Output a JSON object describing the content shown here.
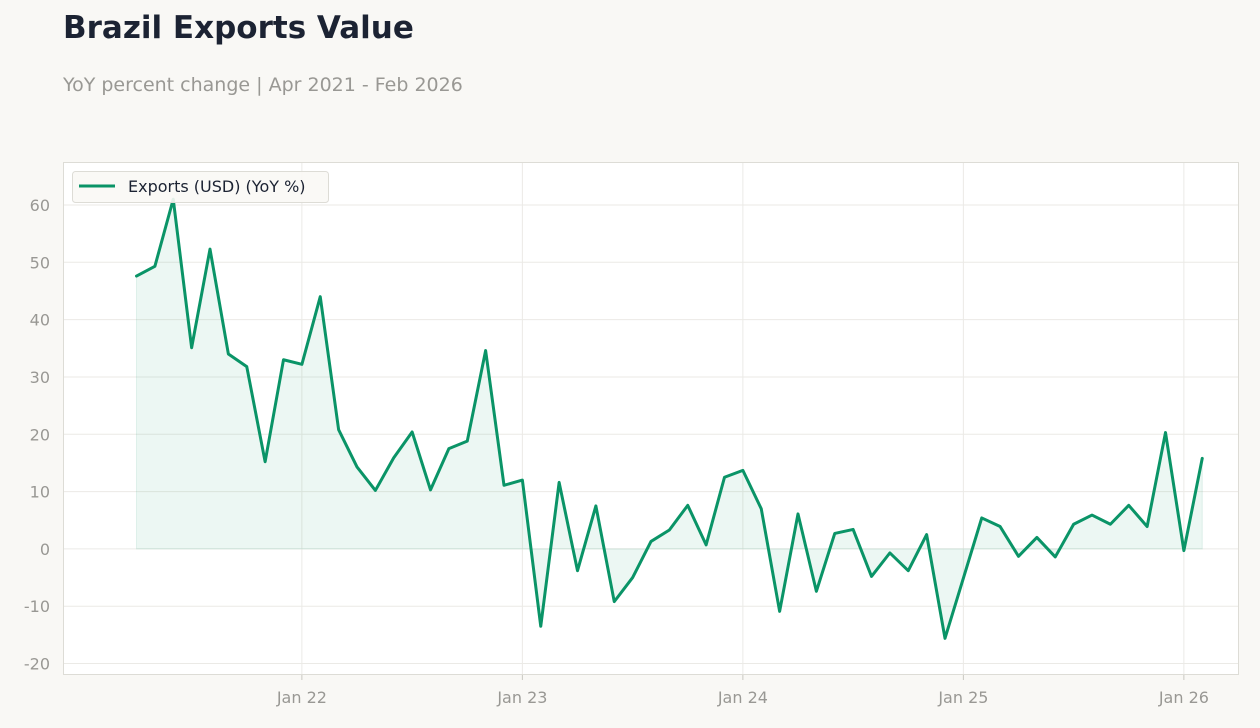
{
  "header": {
    "title": "Brazil Exports Value",
    "subtitle": "YoY percent change | Apr 2021 - Feb 2026"
  },
  "colors": {
    "background": "#f9f8f5",
    "plot_background": "#ffffff",
    "line": "#0a9467",
    "fill": "#0a9467",
    "grid": "#ebeae6",
    "axis_text": "#999894",
    "title": "#1c2333"
  },
  "chart_data": {
    "type": "line",
    "series": [
      {
        "name": "Exports (USD) (YoY %)",
        "x": [
          "2021-04",
          "2021-05",
          "2021-06",
          "2021-07",
          "2021-08",
          "2021-09",
          "2021-10",
          "2021-11",
          "2021-12",
          "2022-01",
          "2022-02",
          "2022-03",
          "2022-04",
          "2022-05",
          "2022-06",
          "2022-07",
          "2022-08",
          "2022-09",
          "2022-10",
          "2022-11",
          "2022-12",
          "2023-01",
          "2023-02",
          "2023-03",
          "2023-04",
          "2023-05",
          "2023-06",
          "2023-07",
          "2023-08",
          "2023-09",
          "2023-10",
          "2023-11",
          "2023-12",
          "2024-01",
          "2024-02",
          "2024-03",
          "2024-04",
          "2024-05",
          "2024-06",
          "2024-07",
          "2024-08",
          "2024-09",
          "2024-10",
          "2024-11",
          "2024-12",
          "2025-01",
          "2025-02",
          "2025-03",
          "2025-04",
          "2025-05",
          "2025-06",
          "2025-07",
          "2025-08",
          "2025-09",
          "2025-10",
          "2025-11",
          "2025-12",
          "2026-01",
          "2026-02"
        ],
        "values": [
          47.6,
          49.3,
          61.0,
          35.1,
          52.3,
          34.0,
          31.8,
          15.2,
          33.0,
          32.2,
          44.0,
          20.8,
          14.3,
          10.2,
          15.9,
          20.4,
          10.3,
          17.5,
          18.8,
          34.6,
          11.1,
          12.0,
          -13.5,
          11.6,
          -3.8,
          7.5,
          -9.2,
          -5.0,
          1.3,
          3.3,
          7.6,
          0.7,
          12.5,
          13.7,
          7.0,
          -10.9,
          6.1,
          -7.4,
          2.7,
          3.4,
          -4.8,
          -0.7,
          -3.8,
          2.5,
          -15.6,
          -5.1,
          5.4,
          3.9,
          -1.3,
          2.0,
          -1.4,
          4.3,
          5.9,
          4.3,
          7.6,
          3.9,
          20.3,
          -0.3,
          15.8
        ]
      }
    ],
    "x_ticks": [
      "Jan 22",
      "Jan 23",
      "Jan 24",
      "Jan 25",
      "Jan 26"
    ],
    "x_tick_dates": [
      "2022-01",
      "2023-01",
      "2024-01",
      "2025-01",
      "2026-01"
    ],
    "xlim": [
      "2020-12",
      "2026-04"
    ],
    "y_ticks": [
      60,
      50,
      40,
      30,
      20,
      10,
      0,
      -10,
      -20
    ],
    "ylim": [
      -22,
      67.5
    ],
    "grid": true,
    "legend": "top-left",
    "fill_to_zero": true
  }
}
